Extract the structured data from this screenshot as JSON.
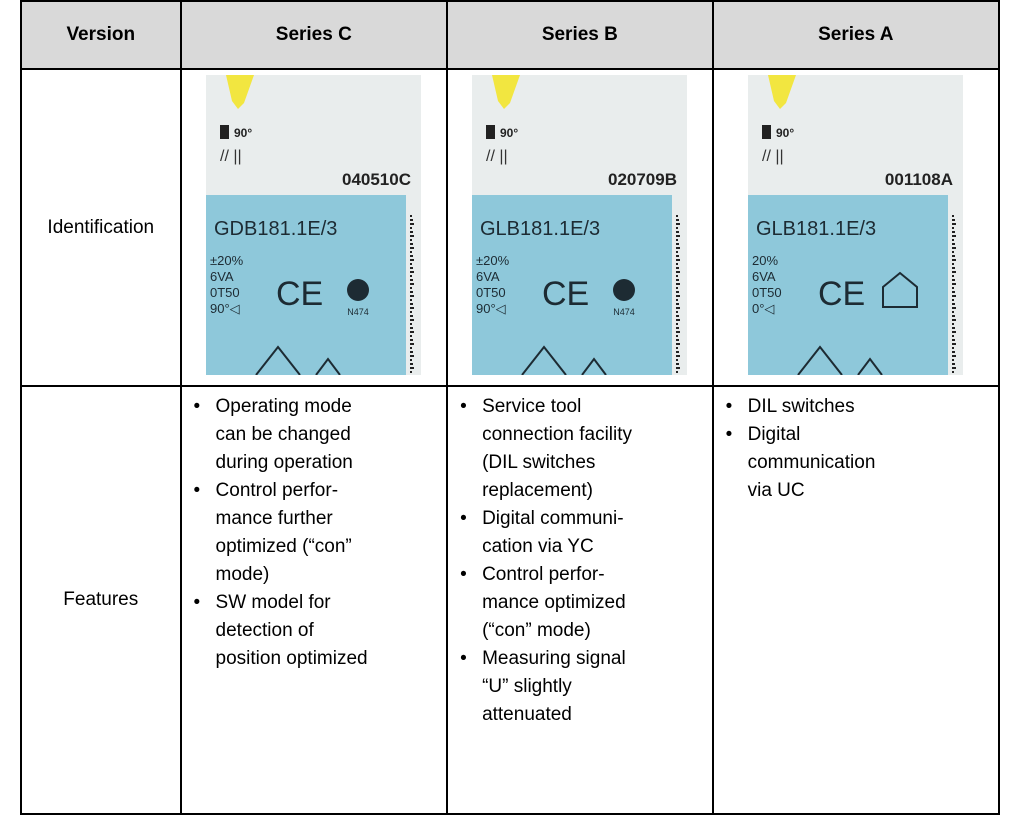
{
  "table": {
    "header": [
      "Version",
      "Series C",
      "Series B",
      "Series A"
    ],
    "identification": {
      "label": "Identification",
      "labels": [
        {
          "angle": "90°",
          "code": "040510C",
          "model": "GDB181.1E/3",
          "specs": [
            "±20%",
            "6VA",
            "0T50",
            "90°◁"
          ],
          "mark": "N474"
        },
        {
          "angle": "90°",
          "code": "020709B",
          "model": "GLB181.1E/3",
          "specs": [
            "±20%",
            "6VA",
            "0T50",
            "90°◁"
          ],
          "mark": "N474"
        },
        {
          "angle": "90°",
          "code": "001108A",
          "model": "GLB181.1E/3",
          "specs": [
            "20%",
            "6VA",
            "0T50",
            "0°◁"
          ]
        }
      ]
    },
    "features": {
      "label": "Features",
      "cells": [
        [
          [
            "Operating mode",
            "can be changed",
            "during operation"
          ],
          [
            "Control perfor-",
            "mance further",
            "optimized (“con”",
            "mode)"
          ],
          [
            "SW model for",
            "detection of",
            "position optimized"
          ]
        ],
        [
          [
            "Service tool",
            "connection facility",
            "(DIL switches",
            "replacement)"
          ],
          [
            "Digital communi-",
            "cation via YC"
          ],
          [
            "Control perfor-",
            "mance optimized",
            "(“con” mode)"
          ],
          [
            "Measuring signal",
            "“U” slightly",
            "attenuated"
          ]
        ],
        [
          [
            "DIL switches"
          ],
          [
            "Digital",
            "communication",
            "via UC"
          ]
        ]
      ]
    }
  }
}
